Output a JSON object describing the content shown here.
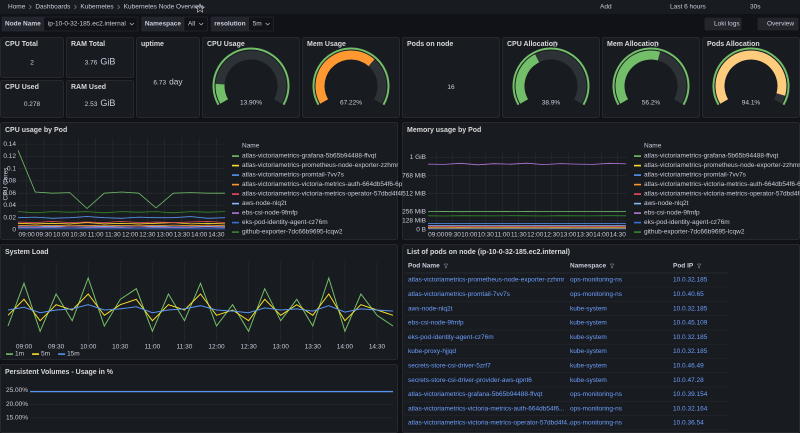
{
  "breadcrumbs": [
    "Home",
    "Dashboards",
    "Kubernetes",
    "Kubernetes Node Overview"
  ],
  "toolbar": {
    "add": "Add",
    "time_range": "Last 6 hours",
    "refresh": "30s"
  },
  "variables": [
    {
      "label": "Node Name",
      "value": "ip-10-0-32-185.ec2.internal"
    },
    {
      "label": "Namespace",
      "value": "All"
    },
    {
      "label": "resolution",
      "value": "5m"
    }
  ],
  "links": [
    "Loki logs",
    "Overview"
  ],
  "stats": [
    {
      "title": "CPU Total",
      "value": 2
    },
    {
      "title": "RAM Total",
      "value": 3.76,
      "unit": "GiB"
    },
    {
      "title": "CPU Used",
      "value": 0.278
    },
    {
      "title": "RAM Used",
      "value": 2.53,
      "unit": "GiB"
    },
    {
      "title": "uptime",
      "value": 6.73,
      "unit": "day",
      "color": "#73bf69"
    },
    {
      "title": "Pods on node",
      "value": 16,
      "color": "#5794f2"
    }
  ],
  "gauges": [
    {
      "title": "CPU Usage",
      "value": 13.9,
      "value_label": "13.90%",
      "max": 100,
      "color": "#73bf69"
    },
    {
      "title": "Mem Usage",
      "value": 67.22,
      "value_label": "67.22%",
      "max": 100,
      "color": "#ff9830"
    },
    {
      "title": "CPU Allocation",
      "value": 38.9,
      "value_label": "38.9%",
      "max": 100,
      "color": "#73bf69"
    },
    {
      "title": "Mem Allocation",
      "value": 56.2,
      "value_label": "56.2%",
      "max": 100,
      "color": "#73bf69"
    },
    {
      "title": "Pods Allocation",
      "value": 94.1,
      "value_label": "94.1%",
      "max": 100,
      "color": "#ffcb7d"
    }
  ],
  "cpu_chart": {
    "title": "CPU usage by Pod",
    "y_label": "CPU Cores",
    "legend_title": "Name",
    "ylim": [
      0,
      0.15
    ],
    "yticks": [
      0,
      0.02,
      0.04,
      0.06,
      0.08,
      0.1,
      0.12,
      0.14
    ],
    "xticks": [
      "09:00",
      "09:30",
      "10:00",
      "10:30",
      "11:00",
      "11:30",
      "12:00",
      "12:30",
      "13:00",
      "13:30",
      "14:00",
      "14:30"
    ],
    "series": [
      {
        "name": "atlas-victoriametrics-grafana-5b65b94488-ffvqt",
        "color": "#73bf69",
        "values": [
          0.13,
          0.062,
          0.06,
          0.061,
          0.035,
          0.06,
          0.062,
          0.06,
          0.036,
          0.06,
          0.061,
          0.06,
          0.06
        ]
      },
      {
        "name": "atlas-victoriametrics-prometheus-node-exporter-zzhmr",
        "color": "#fade2a",
        "values": [
          0.011,
          0.01,
          0.011,
          0.01,
          0.012,
          0.01,
          0.011,
          0.01,
          0.011,
          0.012,
          0.01,
          0.011,
          0.01
        ]
      },
      {
        "name": "atlas-victoriametrics-promtail-7vv7s",
        "color": "#5794f2",
        "values": [
          0.02,
          0.021,
          0.019,
          0.02,
          0.022,
          0.02,
          0.019,
          0.021,
          0.02,
          0.02,
          0.022,
          0.019,
          0.02
        ]
      },
      {
        "name": "atlas-victoriametrics-victoria-metrics-auth-664db54f6-6pftv",
        "color": "#ff9830",
        "values": [
          0.007,
          0.008,
          0.007,
          0.008,
          0.007,
          0.008,
          0.007,
          0.008,
          0.007,
          0.008,
          0.007,
          0.008,
          0.007
        ]
      },
      {
        "name": "atlas-victoriametrics-victoria-metrics-operator-57dbd4f4b6xcbg",
        "color": "#f2495c",
        "values": [
          0.013,
          0.012,
          0.014,
          0.012,
          0.013,
          0.012,
          0.014,
          0.012,
          0.013,
          0.012,
          0.013,
          0.014,
          0.012
        ]
      },
      {
        "name": "aws-node-nlq2t",
        "color": "#8ab8ff",
        "values": [
          0.005,
          0.005,
          0.006,
          0.005,
          0.005,
          0.006,
          0.005,
          0.005,
          0.006,
          0.005,
          0.005,
          0.006,
          0.005
        ]
      },
      {
        "name": "ebs-csi-node-9fmfp",
        "color": "#b877d9",
        "values": [
          0.004,
          0.004,
          0.004,
          0.005,
          0.004,
          0.004,
          0.004,
          0.005,
          0.004,
          0.004,
          0.004,
          0.005,
          0.004
        ]
      },
      {
        "name": "eks-pod-identity-agent-cz76m",
        "color": "#3274d9",
        "values": [
          0.002,
          0.002,
          0.002,
          0.002,
          0.002,
          0.002,
          0.002,
          0.002,
          0.002,
          0.002,
          0.002,
          0.002,
          0.002
        ]
      },
      {
        "name": "github-exporter-7dc66b9695-lcqw2",
        "color": "#37872d",
        "values": [
          0.03,
          0.028,
          0.03,
          0.029,
          0.03,
          0.028,
          0.03,
          0.029,
          0.03,
          0.028,
          0.03,
          0.029,
          0.03
        ]
      }
    ]
  },
  "mem_chart": {
    "title": "Memory usage by Pod",
    "legend_title": "Name",
    "ylim": [
      0,
      1100
    ],
    "yticks": [
      {
        "value": 0,
        "label": "0 B"
      },
      {
        "value": 128,
        "label": "128 MiB"
      },
      {
        "value": 256,
        "label": "256 MiB"
      },
      {
        "value": 512,
        "label": "512 MiB"
      },
      {
        "value": 768,
        "label": "768 MiB"
      },
      {
        "value": 1024,
        "label": "1 GiB"
      }
    ],
    "xticks": [
      "09:00",
      "09:30",
      "10:00",
      "10:30",
      "11:00",
      "11:30",
      "12:00",
      "12:30",
      "13:00",
      "13:30",
      "14:00",
      "14:30"
    ],
    "series": [
      {
        "name": "atlas-victoriametrics-grafana-5b65b94488-ffvqt",
        "color": "#73bf69",
        "values": [
          260,
          262,
          258,
          261,
          263,
          259,
          262,
          260,
          261,
          263,
          260,
          262,
          261
        ]
      },
      {
        "name": "atlas-victoriametrics-prometheus-node-exporter-zzhmr",
        "color": "#fade2a",
        "values": [
          30,
          30,
          31,
          30,
          30,
          31,
          30,
          30,
          31,
          30,
          30,
          31,
          30
        ]
      },
      {
        "name": "atlas-victoriametrics-promtail-7vv7s",
        "color": "#5794f2",
        "values": [
          90,
          92,
          91,
          93,
          90,
          92,
          91,
          90,
          93,
          92,
          91,
          90,
          92
        ]
      },
      {
        "name": "atlas-victoriametrics-victoria-metrics-auth-664db54f6-6pftv",
        "color": "#ff9830",
        "values": [
          20,
          20,
          20,
          20,
          20,
          20,
          20,
          20,
          20,
          20,
          20,
          20,
          20
        ]
      },
      {
        "name": "atlas-victoriametrics-victoria-metrics-operator-57dbd4f4b6xcbg",
        "color": "#f2495c",
        "values": [
          45,
          46,
          45,
          47,
          45,
          46,
          45,
          47,
          45,
          46,
          45,
          47,
          45
        ]
      },
      {
        "name": "aws-node-nlq2t",
        "color": "#8ab8ff",
        "values": [
          60,
          61,
          60,
          61,
          60,
          61,
          60,
          61,
          60,
          61,
          60,
          61,
          60
        ]
      },
      {
        "name": "ebs-csi-node-9fmfp",
        "color": "#b877d9",
        "values": [
          930,
          925,
          940,
          920,
          935,
          928,
          942,
          922,
          936,
          930,
          925,
          940,
          932
        ]
      },
      {
        "name": "eks-pod-identity-agent-cz76m",
        "color": "#3274d9",
        "values": [
          15,
          15,
          15,
          15,
          15,
          15,
          15,
          15,
          15,
          15,
          15,
          15,
          15
        ]
      },
      {
        "name": "github-exporter-7dc66b9695-lcqw2",
        "color": "#37872d",
        "values": [
          200,
          198,
          202,
          200,
          199,
          201,
          200,
          198,
          202,
          200,
          199,
          201,
          200
        ]
      }
    ]
  },
  "load_chart": {
    "title": "System Load",
    "ylim": [
      0,
      1.5
    ],
    "xticks": [
      "09:00",
      "09:30",
      "10:00",
      "10:30",
      "11:00",
      "11:30",
      "12:00",
      "12:30",
      "13:00",
      "13:30",
      "14:00",
      "14:30"
    ],
    "series": [
      {
        "name": "1m",
        "color": "#73bf69",
        "values": [
          0.3,
          1.1,
          0.2,
          0.9,
          0.4,
          1.2,
          0.3,
          0.8,
          1.0,
          0.2,
          0.9,
          0.4,
          1.1,
          0.3,
          0.7,
          0.2,
          1.0,
          0.4,
          0.8,
          0.3,
          1.2,
          0.2,
          0.9,
          0.5,
          0.3
        ]
      },
      {
        "name": "5m",
        "color": "#fade2a",
        "values": [
          0.5,
          0.8,
          0.4,
          0.7,
          0.6,
          0.9,
          0.5,
          0.7,
          0.8,
          0.4,
          0.7,
          0.6,
          0.9,
          0.5,
          0.6,
          0.4,
          0.8,
          0.5,
          0.7,
          0.5,
          0.9,
          0.4,
          0.7,
          0.6,
          0.5
        ]
      },
      {
        "name": "15m",
        "color": "#5794f2",
        "values": [
          0.6,
          0.65,
          0.55,
          0.6,
          0.62,
          0.7,
          0.6,
          0.62,
          0.66,
          0.55,
          0.6,
          0.62,
          0.68,
          0.6,
          0.58,
          0.55,
          0.64,
          0.6,
          0.62,
          0.58,
          0.68,
          0.56,
          0.62,
          0.6,
          0.58
        ]
      }
    ]
  },
  "pv_chart": {
    "title": "Persistent Volumes - Usage in %",
    "ylim": [
      9.5,
      27
    ],
    "yticks": [
      {
        "value": 25,
        "label": "25.00%"
      },
      {
        "value": 20,
        "label": "20.00%"
      },
      {
        "value": 15,
        "label": "15.00%"
      }
    ],
    "values": [
      24.6,
      24.6,
      24.6,
      24.6,
      24.6,
      24.6,
      24.6,
      24.6,
      24.6,
      24.6,
      24.6,
      24.6,
      24.6
    ],
    "color": "#5794f2"
  },
  "pod_table": {
    "title": "List of pods on node (ip-10-0-32-185.ec2.internal)",
    "columns": [
      "Pod Name",
      "Namespace",
      "Pod IP"
    ],
    "rows": [
      [
        "atlas-victoriametrics-prometheus-node-exporter-zzhmr",
        "ops-monitoring-ns",
        "10.0.32.185"
      ],
      [
        "atlas-victoriametrics-promtail-7vv7s",
        "ops-monitoring-ns",
        "10.0.40.65"
      ],
      [
        "aws-node-nlq2t",
        "kube-system",
        "10.0.32.185"
      ],
      [
        "ebs-csi-node-9fmfp",
        "kube-system",
        "10.0.45.109"
      ],
      [
        "eks-pod-identity-agent-cz76m",
        "kube-system",
        "10.0.32.185"
      ],
      [
        "kube-proxy-hjjqd",
        "kube-system",
        "10.0.32.185"
      ],
      [
        "secrets-store-csi-driver-5zrf7",
        "kube-system",
        "10.0.46.49"
      ],
      [
        "secrets-store-csi-driver-provider-aws-qpnt6",
        "kube-system",
        "10.0.47.28"
      ],
      [
        "atlas-victoriametrics-grafana-5b65b94488-ffvqt",
        "ops-monitoring-ns",
        "10.0.39.154"
      ],
      [
        "atlas-victoriametrics-victoria-metrics-auth-664db54f6...",
        "ops-monitoring-ns",
        "10.0.32.164"
      ],
      [
        "atlas-victoriametrics-victoria-metrics-operator-57dbd4f4...",
        "ops-monitoring-ns",
        "10.0.36.54"
      ]
    ]
  }
}
